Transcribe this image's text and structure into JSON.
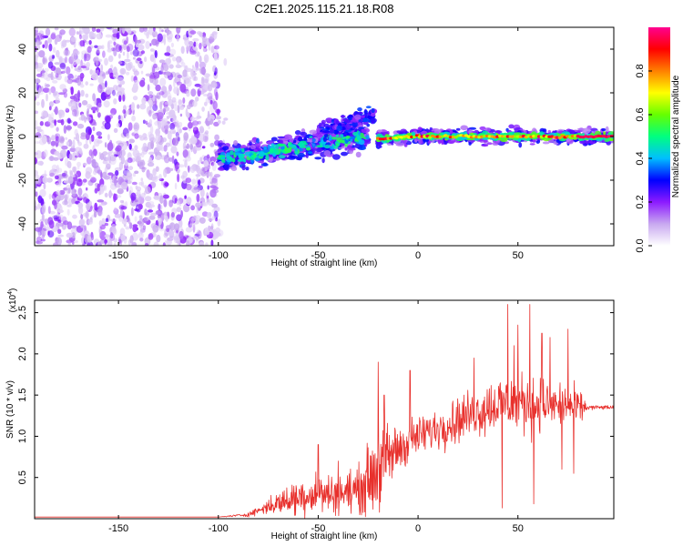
{
  "title": "C2E1.2025.115.21.18.R08",
  "chart_data": [
    {
      "type": "heatmap",
      "xlabel": "Height of straight line (km)",
      "ylabel": "Frequency (Hz)",
      "xlim": [
        -192,
        98
      ],
      "ylim": [
        -50,
        50
      ],
      "xticks": [
        -150,
        -100,
        -50,
        0,
        50
      ],
      "yticks": [
        -40,
        -20,
        0,
        20,
        40
      ],
      "colorbar": {
        "label": "Normalized spectral amplitude",
        "range": [
          0,
          1
        ],
        "ticks": [
          0.0,
          0.2,
          0.4,
          0.6,
          0.8
        ],
        "colormap": [
          "#ffffff",
          "#c8a8f0",
          "#8c1aff",
          "#0000ff",
          "#00bfff",
          "#00ff80",
          "#66ff00",
          "#ffff00",
          "#ff8000",
          "#ff0000",
          "#ff0090"
        ]
      },
      "features": [
        {
          "name": "noise",
          "x_range": [
            -192,
            -100
          ],
          "freq_range": [
            -50,
            50
          ],
          "amplitude": 0.15
        },
        {
          "name": "trace_left",
          "points": [
            [
              -100,
              -10
            ],
            [
              -75,
              -7
            ],
            [
              -50,
              -3
            ],
            [
              -25,
              0
            ]
          ],
          "amplitude": 0.4
        },
        {
          "name": "branch",
          "points": [
            [
              -50,
              2
            ],
            [
              -35,
              6
            ],
            [
              -22,
              10
            ]
          ],
          "amplitude": 0.3
        },
        {
          "name": "trace_right",
          "points": [
            [
              -20,
              -1
            ],
            [
              0,
              0
            ],
            [
              50,
              0
            ],
            [
              98,
              0
            ]
          ],
          "amplitude": 0.75
        }
      ]
    },
    {
      "type": "line",
      "xlabel": "Height of straight line (km)",
      "ylabel": "SNR (10 * v/v)",
      "yunit": "(x10^4)",
      "xlim": [
        -192,
        98
      ],
      "ylim": [
        0,
        2.65
      ],
      "xticks": [
        -150,
        -100,
        -50,
        0,
        50
      ],
      "yticks": [
        0.5,
        1.0,
        1.5,
        2.0,
        2.5
      ],
      "color": "#e8302c",
      "envelope": [
        {
          "x": -192,
          "base": 0.02,
          "amp": 0.0
        },
        {
          "x": -100,
          "base": 0.02,
          "amp": 0.0
        },
        {
          "x": -85,
          "base": 0.05,
          "amp": 0.03
        },
        {
          "x": -75,
          "base": 0.15,
          "amp": 0.12
        },
        {
          "x": -55,
          "base": 0.3,
          "amp": 0.35
        },
        {
          "x": -40,
          "base": 0.3,
          "amp": 0.3
        },
        {
          "x": -30,
          "base": 0.35,
          "amp": 0.35
        },
        {
          "x": -20,
          "base": 0.6,
          "amp": 0.7
        },
        {
          "x": -10,
          "base": 0.85,
          "amp": 0.4
        },
        {
          "x": 0,
          "base": 1.0,
          "amp": 0.3
        },
        {
          "x": 20,
          "base": 1.2,
          "amp": 0.35
        },
        {
          "x": 40,
          "base": 1.4,
          "amp": 0.45
        },
        {
          "x": 60,
          "base": 1.4,
          "amp": 0.45
        },
        {
          "x": 80,
          "base": 1.35,
          "amp": 0.3
        },
        {
          "x": 85,
          "base": 1.35,
          "amp": 0.04
        },
        {
          "x": 98,
          "base": 1.35,
          "amp": 0.03
        }
      ],
      "spikes": [
        [
          -50,
          0.9
        ],
        [
          -40,
          0.7
        ],
        [
          -20,
          1.9
        ],
        [
          -17,
          1.5
        ],
        [
          -4,
          1.8
        ],
        [
          28,
          1.95
        ],
        [
          42,
          0.13
        ],
        [
          45,
          2.6
        ],
        [
          48,
          2.1
        ],
        [
          50,
          2.35
        ],
        [
          56,
          2.6
        ],
        [
          58,
          0.18
        ],
        [
          62,
          2.25
        ],
        [
          66,
          2.2
        ],
        [
          72,
          0.6
        ],
        [
          75,
          2.3
        ],
        [
          78,
          0.55
        ]
      ]
    }
  ]
}
